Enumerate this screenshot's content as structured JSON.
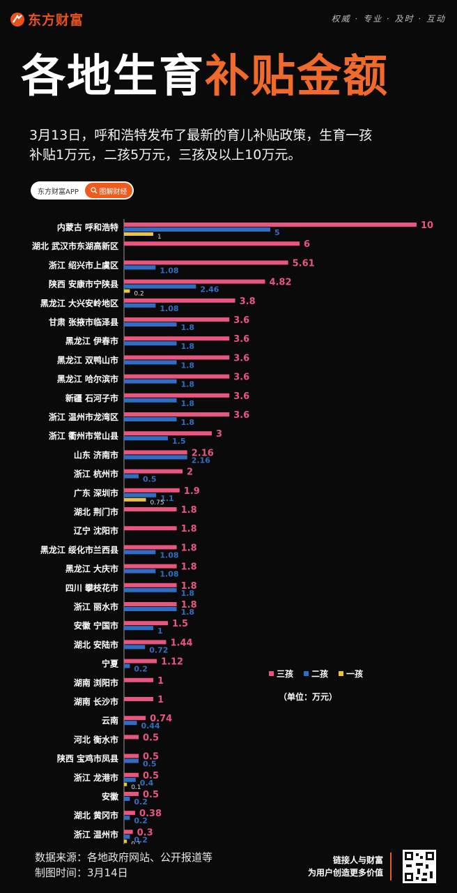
{
  "header": {
    "logo_text": "东方财富",
    "slogan": "权威 · 专业 · 及时 · 互动"
  },
  "title": {
    "part1": "各地生育",
    "part2": "补贴金额"
  },
  "subtitle": {
    "line1": "3月13日，呼和浩特发布了最新的育儿补贴政策，生育一孩",
    "line2": "补贴1万元，二孩5万元，三孩及以上10万元。"
  },
  "badge": {
    "left": "东方财富APP",
    "right": "图解财经"
  },
  "colors": {
    "third": "#e8557f",
    "second": "#2f6ec2",
    "first": "#e9c440",
    "accent": "#ef6a2b"
  },
  "footer": {
    "source": "数据来源：各地政府网站、公开报道等",
    "date": "制图时间：3月14日",
    "right_line1": "链接人与财富",
    "right_line2": "为用户创造更多价值"
  },
  "chart_data": {
    "type": "bar",
    "orientation": "horizontal",
    "unit_label": "（单位：万元）",
    "legend_position": "right",
    "series": [
      {
        "name": "三孩",
        "color": "#e8557f"
      },
      {
        "name": "二孩",
        "color": "#2f6ec2"
      },
      {
        "name": "一孩",
        "color": "#e9c440"
      }
    ],
    "xlim": [
      0,
      10
    ],
    "rows": [
      {
        "label": "内蒙古 呼和浩特",
        "third": 10,
        "second": 5,
        "first": 1
      },
      {
        "label": "湖北 武汉市东湖高新区",
        "third": 6
      },
      {
        "label": "浙江 绍兴市上虞区",
        "third": 5.61,
        "second": 1.08
      },
      {
        "label": "陕西 安康市宁陕县",
        "third": 4.82,
        "second": 2.46,
        "first": 0.2
      },
      {
        "label": "黑龙江 大兴安岭地区",
        "third": 3.8,
        "second": 1.08
      },
      {
        "label": "甘肃 张掖市临泽县",
        "third": 3.6,
        "second": 1.8
      },
      {
        "label": "黑龙江 伊春市",
        "third": 3.6,
        "second": 1.8
      },
      {
        "label": "黑龙江 双鸭山市",
        "third": 3.6,
        "second": 1.8
      },
      {
        "label": "黑龙江 哈尔滨市",
        "third": 3.6,
        "second": 1.8
      },
      {
        "label": "新疆 石河子市",
        "third": 3.6,
        "second": 1.8
      },
      {
        "label": "浙江 温州市龙湾区",
        "third": 3.6,
        "second": 1.8
      },
      {
        "label": "浙江 衢州市常山县",
        "third": 3,
        "second": 1.5
      },
      {
        "label": "山东 济南市",
        "third": 2.16,
        "second": 2.16
      },
      {
        "label": "浙江 杭州市",
        "third": 2,
        "second": 0.5
      },
      {
        "label": "广东 深圳市",
        "third": 1.9,
        "second": 1.1,
        "first": 0.75
      },
      {
        "label": "湖北 荆门市",
        "third": 1.8
      },
      {
        "label": "辽宁 沈阳市",
        "third": 1.8
      },
      {
        "label": "黑龙江 绥化市兰西县",
        "third": 1.8,
        "second": 1.08
      },
      {
        "label": "黑龙江 大庆市",
        "third": 1.8,
        "second": 1.08
      },
      {
        "label": "四川 攀枝花市",
        "third": 1.8,
        "second": 1.8
      },
      {
        "label": "浙江 丽水市",
        "third": 1.8,
        "second": 1.8
      },
      {
        "label": "安徽 宁国市",
        "third": 1.5,
        "second": 1
      },
      {
        "label": "湖北 安陆市",
        "third": 1.44,
        "second": 0.72
      },
      {
        "label": "宁夏",
        "third": 1.12,
        "second": 0.2
      },
      {
        "label": "湖南 浏阳市",
        "third": 1
      },
      {
        "label": "湖南 长沙市",
        "third": 1
      },
      {
        "label": "云南",
        "third": 0.74,
        "second": 0.44
      },
      {
        "label": "河北 衡水市",
        "third": 0.5
      },
      {
        "label": "陕西 宝鸡市凤县",
        "third": 0.5,
        "second": 0.5
      },
      {
        "label": "浙江 龙港市",
        "third": 0.5,
        "second": 0.4,
        "first": 0.1
      },
      {
        "label": "安徽",
        "third": 0.5,
        "second": 0.2
      },
      {
        "label": "湖北 黄冈市",
        "third": 0.38,
        "second": 0.2
      },
      {
        "label": "浙江 温州市",
        "third": 0.3,
        "second": 0.2,
        "first": 0.1
      }
    ]
  }
}
